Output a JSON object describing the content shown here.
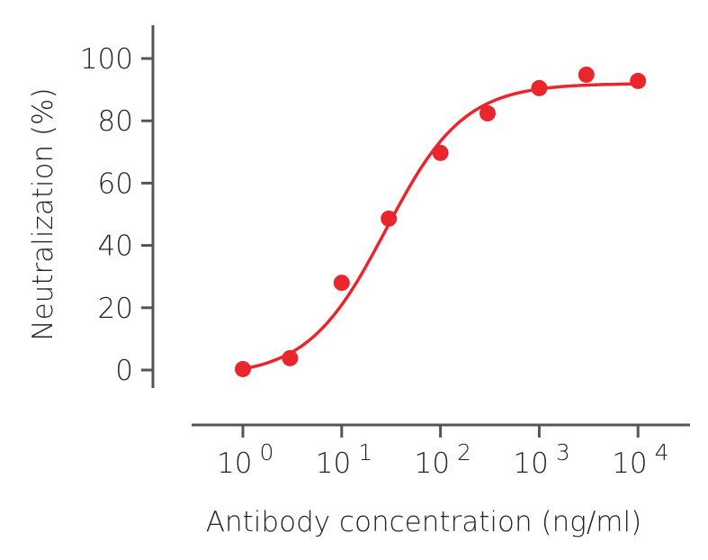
{
  "chart_data": {
    "type": "scatter",
    "title": "",
    "xlabel": "Antibody concentration (ng/ml)",
    "ylabel": "Neutralization (%)",
    "x_scale": "log",
    "xlim": [
      0.3,
      40000
    ],
    "ylim": [
      -5,
      110
    ],
    "x_ticks": [
      {
        "base": "10",
        "exp": "0",
        "value": 1
      },
      {
        "base": "10",
        "exp": "1",
        "value": 10
      },
      {
        "base": "10",
        "exp": "2",
        "value": 100
      },
      {
        "base": "10",
        "exp": "3",
        "value": 1000
      },
      {
        "base": "10",
        "exp": "4",
        "value": 10000
      }
    ],
    "y_ticks": [
      "0",
      "20",
      "40",
      "60",
      "80",
      "100"
    ],
    "grid": false,
    "color": "#e8262c",
    "points": [
      {
        "x": 1,
        "y": 0.3
      },
      {
        "x": 3,
        "y": 3.8
      },
      {
        "x": 10,
        "y": 28
      },
      {
        "x": 30,
        "y": 48.6
      },
      {
        "x": 100,
        "y": 69.7
      },
      {
        "x": 300,
        "y": 82.4
      },
      {
        "x": 1000,
        "y": 90.5
      },
      {
        "x": 3000,
        "y": 94.8
      },
      {
        "x": 10000,
        "y": 92.8
      }
    ],
    "fit_curve": {
      "model": "four-parameter logistic",
      "bottom": -2,
      "top": 92,
      "ec50": 28,
      "hill": 1.1
    }
  }
}
